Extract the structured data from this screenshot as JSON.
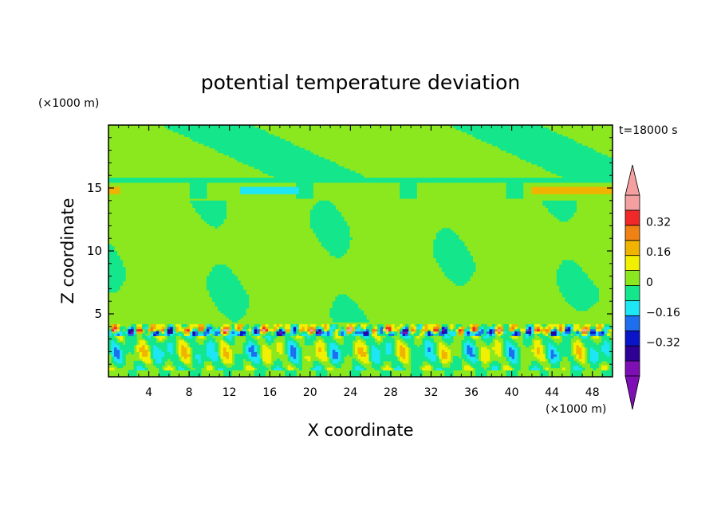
{
  "chart_data": {
    "type": "heatmap",
    "title": "potential temperature deviation",
    "time_label": "t=18000 s",
    "xlabel": "X coordinate",
    "ylabel": "Z coordinate",
    "x_unit": "(×1000 m)",
    "y_unit": "(×1000 m)",
    "xlim": [
      0,
      50
    ],
    "ylim": [
      0,
      20
    ],
    "x_ticks": [
      4,
      8,
      12,
      16,
      20,
      24,
      28,
      32,
      36,
      40,
      44,
      48
    ],
    "y_ticks": [
      5,
      10,
      15
    ],
    "colorbar": {
      "levels": [
        -0.48,
        -0.4,
        -0.32,
        -0.24,
        -0.16,
        -0.08,
        0,
        0.08,
        0.16,
        0.24,
        0.32,
        0.4,
        0.48
      ],
      "tick_values": [
        0.32,
        0.16,
        0,
        -0.16,
        -0.32
      ],
      "tick_labels": [
        "0.32",
        "0.16",
        "0",
        "−0.16",
        "−0.32"
      ],
      "colors": {
        "under": "#7d0fb4",
        "over": "#f4a0a0",
        "bins": [
          "#7d0fb4",
          "#2d0096",
          "#0a14c8",
          "#1e6ef0",
          "#1ee6f5",
          "#14e68c",
          "#8ce81e",
          "#f0f000",
          "#f0b400",
          "#f08214",
          "#f02828",
          "#f4a0a0"
        ]
      }
    },
    "field_description": {
      "background_value": 0.04,
      "upper_layer": {
        "z_range": [
          14.3,
          20
        ],
        "value": 0.04
      },
      "shear_layer_z": 3.7,
      "boundary_layer_z_range": [
        0,
        3.2
      ]
    }
  }
}
